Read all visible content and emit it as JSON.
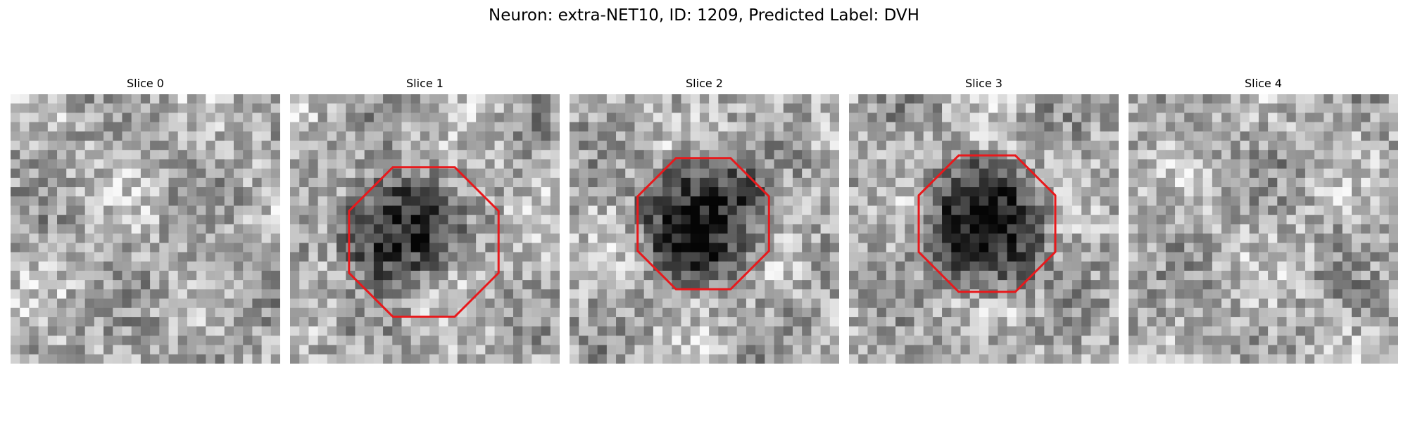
{
  "figure": {
    "title": "Neuron: extra-NET10, ID: 1209, Predicted Label: DVH",
    "colormap": "grayscale",
    "outline_color": "#e8191c"
  },
  "panels": [
    {
      "title": "Slice 0",
      "outline": false,
      "dark_center": false,
      "seed": 11
    },
    {
      "title": "Slice 1",
      "outline": true,
      "dark_center": true,
      "seed": 23
    },
    {
      "title": "Slice 2",
      "outline": true,
      "dark_center": true,
      "seed": 37
    },
    {
      "title": "Slice 3",
      "outline": true,
      "dark_center": true,
      "seed": 53
    },
    {
      "title": "Slice 4",
      "outline": false,
      "dark_center": false,
      "seed": 71
    }
  ]
}
